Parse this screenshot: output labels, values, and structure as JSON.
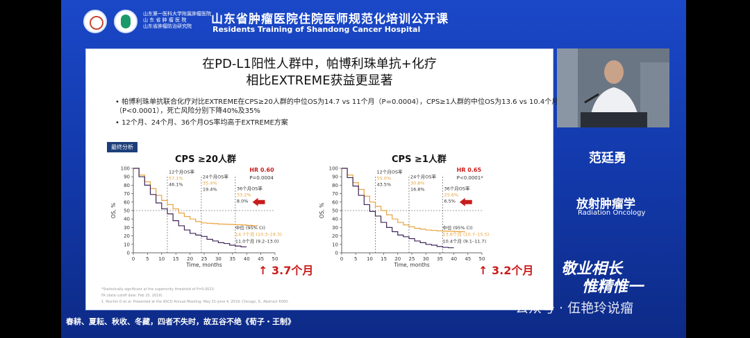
{
  "header": {
    "institution_lines": [
      "山东第一医科大学附属肿瘤医院",
      "山 东 省 肿 瘤 医 院",
      "山东省肿瘤防治研究院"
    ],
    "title_cn": "山东省肿瘤医院住院医师规范化培训公开课",
    "title_en": "Residents Training of Shandong Cancer Hospital"
  },
  "slide": {
    "title_line1": "在PD-L1阳性人群中，帕博利珠单抗+化疗",
    "title_line2": "相比EXTREME获益更显著",
    "bullet1": "帕博利珠单抗联合化疗对比EXTREME在CPS≥20人群的中位OS为14.7 vs 11个月（P=0.0004），CPS≥1人群的中位OS为13.6 vs 10.4个月（P<0.0001），死亡风险分别下降40%及35%",
    "bullet2": "12个月、24个月、36个月OS率均高于EXTREME方案",
    "tag": "最终分析",
    "footnote1": "*Statistically significant at the superiority threshold of P=0.0023.",
    "footnote2": "FA (data cutoff date: Feb 25, 2019).",
    "footnote3": "1. Rischin D et al. Presented at the ASCO Annual Meeting; May 31–June 4, 2019; Chicago, IL. Abstract 6000."
  },
  "colors": {
    "orange": "#e8a23c",
    "purple": "#3d2456",
    "red_arrow": "#c81d1d",
    "blue_bg": "#1a44c0"
  },
  "chart_data": [
    {
      "type": "line",
      "title": "CPS ≥20人群",
      "xlabel": "Time, months",
      "ylabel": "OS, %",
      "xlim": [
        0,
        50
      ],
      "ylim": [
        0,
        100
      ],
      "xticks": [
        0,
        5,
        10,
        15,
        20,
        25,
        30,
        35,
        40,
        45,
        50
      ],
      "yticks": [
        0,
        10,
        20,
        30,
        40,
        50,
        60,
        70,
        80,
        90,
        100
      ],
      "hr": "HR 0.60",
      "p": "P=0.0004",
      "landmarks": [
        {
          "label": "12个月OS率",
          "orange": "57.1%",
          "purple": "46.1%",
          "x": 12
        },
        {
          "label": "24个月OS率",
          "orange": "35.4%",
          "purple": "19.4%",
          "x": 24
        },
        {
          "label": "36个月OS率",
          "orange": "33.2%",
          "purple": "8.0%",
          "x": 36
        }
      ],
      "median_header": "中位 (95% CI)",
      "median_orange": "14.7个月 (10.3–19.3)",
      "median_purple": "11.0个月 (9.2–13.0)",
      "gain": "↑ 3.7个月",
      "series": [
        {
          "color": "#e8a23c",
          "x": [
            0,
            2,
            4,
            6,
            8,
            10,
            12,
            14,
            16,
            18,
            20,
            22,
            24,
            26,
            28,
            30,
            32,
            34,
            36,
            38,
            40,
            42,
            44
          ],
          "y": [
            100,
            92,
            84,
            76,
            68,
            62,
            57,
            52,
            47,
            43,
            40,
            37,
            35.4,
            35,
            34.5,
            34,
            33.8,
            33.5,
            33.2,
            33,
            32.5,
            32,
            32
          ]
        },
        {
          "color": "#3d2456",
          "x": [
            0,
            2,
            4,
            6,
            8,
            10,
            12,
            14,
            16,
            18,
            20,
            22,
            24,
            26,
            28,
            30,
            32,
            34,
            36,
            38,
            40
          ],
          "y": [
            100,
            90,
            80,
            69,
            59,
            52,
            46.1,
            38,
            32,
            27,
            23,
            21,
            19.4,
            16,
            14,
            12,
            11,
            9,
            8,
            7,
            7
          ]
        }
      ]
    },
    {
      "type": "line",
      "title": "CPS ≥1人群",
      "xlabel": "Time, months",
      "ylabel": "OS, %",
      "xlim": [
        0,
        50
      ],
      "ylim": [
        0,
        100
      ],
      "xticks": [
        0,
        5,
        10,
        15,
        20,
        25,
        30,
        35,
        40,
        45,
        50
      ],
      "yticks": [
        0,
        10,
        20,
        30,
        40,
        50,
        60,
        70,
        80,
        90,
        100
      ],
      "hr": "HR 0.65",
      "p": "P<0.0001*",
      "landmarks": [
        {
          "label": "12个月OS率",
          "orange": "55.0%",
          "purple": "43.5%",
          "x": 12
        },
        {
          "label": "24个月OS率",
          "orange": "30.8%",
          "purple": "16.8%",
          "x": 24
        },
        {
          "label": "36个月OS率",
          "orange": "25.6%",
          "purple": "6.5%",
          "x": 36
        }
      ],
      "median_header": "中位 (95% CI)",
      "median_orange": "13.6个月 (10.7–15.5)",
      "median_purple": "10.4个月 (9.1–11.7)",
      "gain": "↑ 3.2个月",
      "series": [
        {
          "color": "#e8a23c",
          "x": [
            0,
            2,
            4,
            6,
            8,
            10,
            12,
            14,
            16,
            18,
            20,
            22,
            24,
            26,
            28,
            30,
            32,
            34,
            36,
            38,
            40,
            42,
            44
          ],
          "y": [
            100,
            92,
            83,
            75,
            67,
            60,
            55,
            50,
            45,
            40,
            36,
            33,
            30.8,
            29,
            28,
            27,
            26.5,
            26,
            25.6,
            25.5,
            25.2,
            25,
            25
          ]
        },
        {
          "color": "#3d2456",
          "x": [
            0,
            2,
            4,
            6,
            8,
            10,
            12,
            14,
            16,
            18,
            20,
            22,
            24,
            26,
            28,
            30,
            32,
            34,
            36,
            38,
            40
          ],
          "y": [
            100,
            89,
            79,
            68,
            57,
            49,
            43.5,
            36,
            30,
            25,
            21,
            19,
            16.8,
            14,
            12,
            10,
            9,
            7.5,
            6.5,
            6,
            6
          ]
        }
      ]
    }
  ],
  "presenter": {
    "name": "范廷勇",
    "dept": "放射肿瘤学",
    "dept_en": "Radiation Oncology",
    "calligraphy_line1": "敬业相长",
    "calligraphy_line2": "惟精惟一"
  },
  "caption": "春耕、夏耘、秋收、冬藏，四者不失时，故五谷不绝《荀子・王制》",
  "watermark": "公众号 · 伍艳玲说瘤"
}
